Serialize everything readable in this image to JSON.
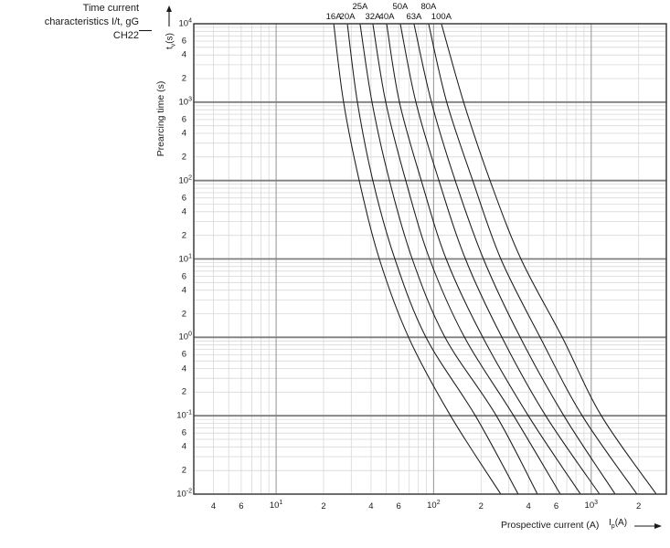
{
  "title_block": {
    "lines": [
      "Time current",
      "characteristics I/t, gG",
      "CH22"
    ]
  },
  "y_axis": {
    "title": "Prearcing time (s)",
    "unit": {
      "symbol": "t",
      "sub": "v",
      "paren": "(s)"
    }
  },
  "x_axis": {
    "title": "Prospective current (A)",
    "unit": {
      "symbol": "I",
      "sub": "p",
      "paren": "(A)"
    }
  },
  "colors": {
    "curve": "#1a1a1a",
    "grid_minor": "#d8d8d8",
    "grid_major_h": "#7f7f7f",
    "grid_major_v": "#9c9c9c",
    "border": "#3c3c3c",
    "text": "#1a1a1a"
  },
  "chart_data": {
    "type": "line",
    "title": "Time current characteristics I/t, gG CH22",
    "xlabel": "Prospective current (A)",
    "ylabel": "Prearcing time (s)",
    "x_scale": "log",
    "y_scale": "log",
    "xlim": [
      3,
      3000
    ],
    "ylim": [
      0.01,
      10000
    ],
    "grid": true,
    "x_decade_exponents": [
      1,
      2,
      3
    ],
    "x_minor_labeled": [
      4,
      6,
      20,
      40,
      60,
      200,
      400,
      600,
      2000
    ],
    "y_decade_exponents": [
      4,
      3,
      2,
      1,
      0,
      -1,
      -2
    ],
    "y_minor_labeled": [
      6000,
      4000,
      2000,
      600,
      400,
      200,
      60,
      40,
      20,
      6,
      4,
      2,
      0.6,
      0.4,
      0.2,
      0.06,
      0.04,
      0.02
    ],
    "series": [
      {
        "name": "16A",
        "label_row": 2,
        "points": [
          [
            23.2,
            10000
          ],
          [
            26.8,
            1000
          ],
          [
            33.7,
            100
          ],
          [
            45.2,
            10
          ],
          [
            69.3,
            1
          ],
          [
            128,
            0.1
          ],
          [
            267,
            0.01
          ]
        ]
      },
      {
        "name": "20A",
        "label_row": 2,
        "points": [
          [
            28.3,
            10000
          ],
          [
            32.8,
            1000
          ],
          [
            41.1,
            100
          ],
          [
            56.7,
            10
          ],
          [
            89.3,
            1
          ],
          [
            184,
            0.1
          ],
          [
            344,
            0.01
          ]
        ]
      },
      {
        "name": "25A",
        "label_row": 1,
        "points": [
          [
            34.1,
            10000
          ],
          [
            40.6,
            1000
          ],
          [
            52.4,
            100
          ],
          [
            73.1,
            10
          ],
          [
            118,
            1
          ],
          [
            250,
            0.1
          ],
          [
            456,
            0.01
          ]
        ]
      },
      {
        "name": "32A",
        "label_row": 2,
        "points": [
          [
            41.1,
            10000
          ],
          [
            49.6,
            1000
          ],
          [
            66.5,
            100
          ],
          [
            94.2,
            10
          ],
          [
            157,
            1
          ],
          [
            322,
            0.1
          ],
          [
            637,
            0.01
          ]
        ]
      },
      {
        "name": "40A",
        "label_row": 2,
        "points": [
          [
            50.3,
            10000
          ],
          [
            60.6,
            1000
          ],
          [
            83.5,
            100
          ],
          [
            120,
            10
          ],
          [
            205,
            1
          ],
          [
            399,
            0.1
          ],
          [
            855,
            0.01
          ]
        ]
      },
      {
        "name": "50A",
        "label_row": 1,
        "points": [
          [
            61.4,
            10000
          ],
          [
            77.1,
            1000
          ],
          [
            108,
            100
          ],
          [
            159,
            10
          ],
          [
            271,
            1
          ],
          [
            514,
            0.1
          ],
          [
            1130,
            0.01
          ]
        ]
      },
      {
        "name": "63A",
        "label_row": 2,
        "points": [
          [
            75.0,
            10000
          ],
          [
            96.8,
            1000
          ],
          [
            137,
            100
          ],
          [
            207,
            10
          ],
          [
            354,
            1
          ],
          [
            671,
            0.1
          ],
          [
            1420,
            0.01
          ]
        ]
      },
      {
        "name": "80A",
        "label_row": 1,
        "points": [
          [
            92.9,
            10000
          ],
          [
            121,
            1000
          ],
          [
            177,
            100
          ],
          [
            267,
            10
          ],
          [
            474,
            1
          ],
          [
            877,
            0.1
          ],
          [
            1950,
            0.01
          ]
        ]
      },
      {
        "name": "100A",
        "label_row": 2,
        "points": [
          [
            112,
            10000
          ],
          [
            155,
            1000
          ],
          [
            228,
            100
          ],
          [
            358,
            10
          ],
          [
            655,
            1
          ],
          [
            1160,
            0.1
          ],
          [
            2590,
            0.01
          ]
        ]
      }
    ]
  }
}
